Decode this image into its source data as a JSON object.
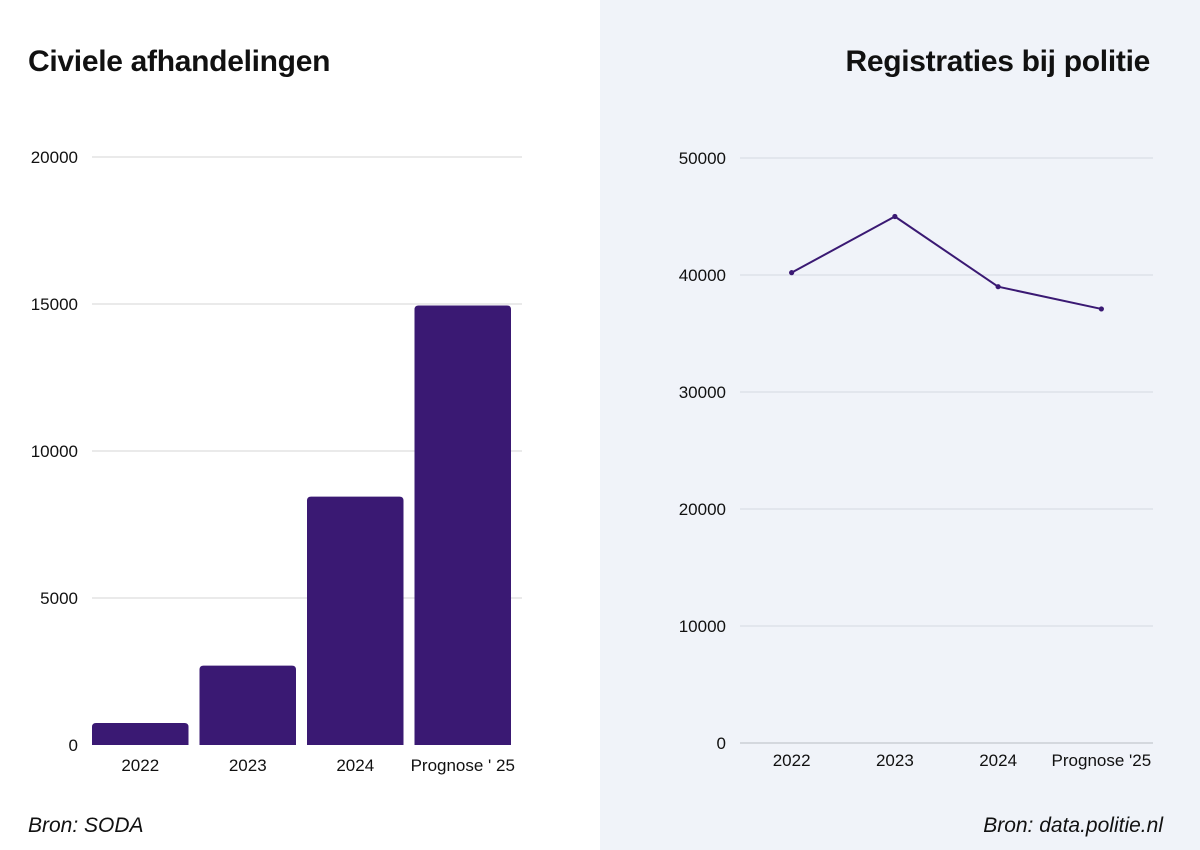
{
  "chart_data": [
    {
      "type": "bar",
      "title": "Civiele afhandelingen",
      "categories": [
        "2022",
        "2023",
        "2024",
        "Prognose ' 25"
      ],
      "values": [
        750,
        2700,
        8450,
        14950
      ],
      "yticks": [
        0,
        5000,
        10000,
        15000,
        20000
      ],
      "ylim": [
        0,
        20000
      ],
      "xlabel": "",
      "ylabel": "",
      "grid": true,
      "color": "#3a1973",
      "source": "Bron: SODA"
    },
    {
      "type": "line",
      "title": "Registraties bij politie",
      "categories": [
        "2022",
        "2023",
        "2024",
        "Prognose '25"
      ],
      "values": [
        40200,
        45000,
        39000,
        37100
      ],
      "yticks": [
        0,
        10000,
        20000,
        30000,
        40000,
        50000
      ],
      "ylim": [
        0,
        50000
      ],
      "xlabel": "",
      "ylabel": "",
      "grid": true,
      "color": "#3a1973",
      "source": "Bron: data.politie.nl"
    }
  ]
}
